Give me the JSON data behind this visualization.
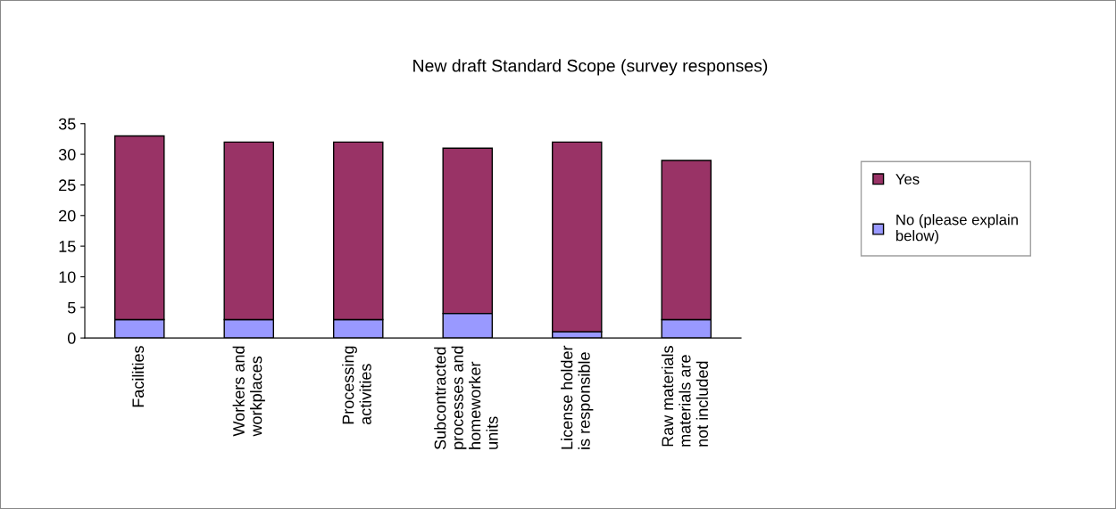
{
  "chart_data": {
    "type": "bar",
    "title": "New draft Standard Scope (survey responses)",
    "categories": [
      "Facilities",
      "Workers and\nworkplaces",
      "Processing\nactivities",
      "Subcontracted\nprocesses and\nhomeworker\nunits",
      "License holder\nis responsible",
      "Raw materials\nmaterials are\nnot included"
    ],
    "stacked": true,
    "series": [
      {
        "name": "No (please explain\nbelow)",
        "color": "#9999ff",
        "values": [
          3,
          3,
          3,
          4,
          1,
          3
        ]
      },
      {
        "name": "Yes",
        "color": "#993366",
        "values": [
          30,
          29,
          29,
          27,
          31,
          26
        ]
      }
    ],
    "ylim": [
      0,
      35
    ],
    "yticks": [
      0,
      5,
      10,
      15,
      20,
      25,
      30,
      35
    ],
    "grid": false,
    "legend": "right"
  }
}
